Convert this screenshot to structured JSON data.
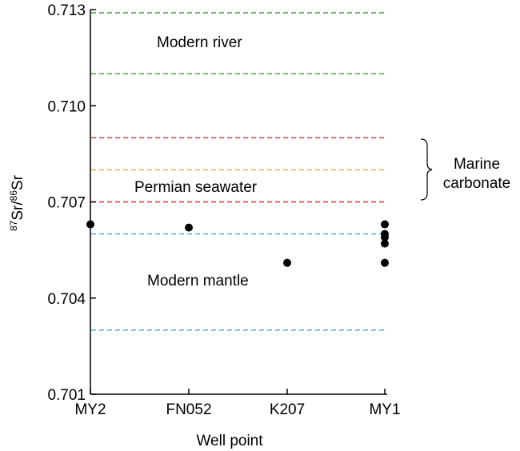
{
  "chart_data": {
    "type": "scatter",
    "title": "",
    "xlabel": "Well point",
    "ylabel_main": "Sr/",
    "ylabel_sup1": "87",
    "ylabel_sup2": "86",
    "ylabel_tail": "Sr",
    "categories": [
      "MY2",
      "FN052",
      "K207",
      "MY1"
    ],
    "y_ticks": [
      "0.701",
      "0.704",
      "0.707",
      "0.710",
      "0.713"
    ],
    "ylim": [
      0.701,
      0.713
    ],
    "grid": false,
    "points": [
      {
        "x": "MY2",
        "y": 0.7063
      },
      {
        "x": "FN052",
        "y": 0.7062
      },
      {
        "x": "K207",
        "y": 0.7051
      },
      {
        "x": "MY1",
        "y": 0.7063
      },
      {
        "x": "MY1",
        "y": 0.706
      },
      {
        "x": "MY1",
        "y": 0.7059
      },
      {
        "x": "MY1",
        "y": 0.7057
      },
      {
        "x": "MY1",
        "y": 0.7051
      }
    ],
    "reference_lines": [
      {
        "y": 0.7129,
        "color": "#3aa13a",
        "group": "Modern river"
      },
      {
        "y": 0.711,
        "color": "#3aa13a",
        "group": "Modern river"
      },
      {
        "y": 0.709,
        "color": "#e03030",
        "group": "Marine carbonate"
      },
      {
        "y": 0.708,
        "color": "#f0a830",
        "group": "Permian seawater"
      },
      {
        "y": 0.707,
        "color": "#e03030",
        "group": "Marine carbonate"
      },
      {
        "y": 0.706,
        "color": "#3aa8e0",
        "group": "Modern mantle"
      },
      {
        "y": 0.703,
        "color": "#3aa8e0",
        "group": "Modern mantle"
      }
    ],
    "annotations": {
      "modern_river": "Modern river",
      "permian_seawater": "Permian seawater",
      "modern_mantle": "Modern mantle",
      "marine_line1": "Marine",
      "marine_line2": "carbonate"
    },
    "point_color": "#000000"
  }
}
